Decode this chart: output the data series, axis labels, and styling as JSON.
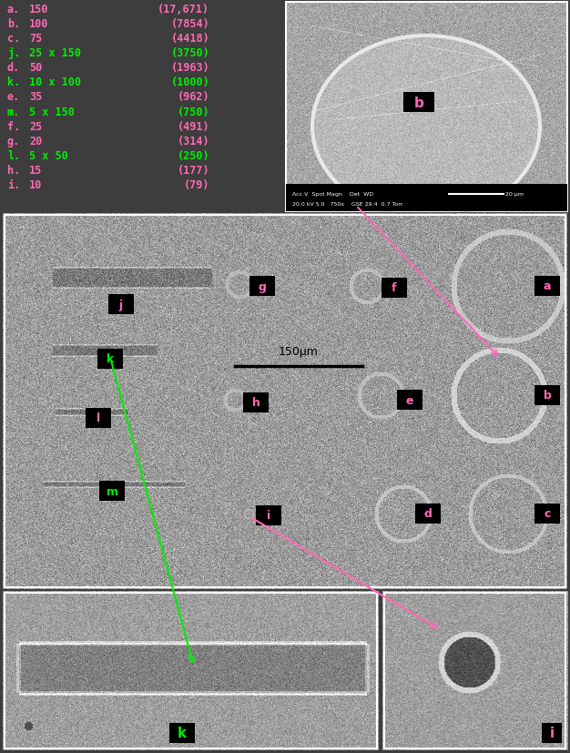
{
  "bg_color": "#3d3d3d",
  "sem_bg_main": "#a0a0a0",
  "sem_bg_inset": "#b8b8b8",
  "text_color_pink": "#ff69b4",
  "text_color_green": "#00ee00",
  "label_bg": "#000000",
  "legend_items": [
    {
      "label": "a.",
      "value": "150",
      "area": "(17,671)",
      "color": "pink"
    },
    {
      "label": "b.",
      "value": "100",
      "area": "(7854)",
      "color": "pink"
    },
    {
      "label": "c.",
      "value": "75",
      "area": "(4418)",
      "color": "pink"
    },
    {
      "label": "j.",
      "value": "25 x 150",
      "area": "(3750)",
      "color": "green"
    },
    {
      "label": "d.",
      "value": "50",
      "area": "(1963)",
      "color": "pink"
    },
    {
      "label": "k.",
      "value": "10 x 100",
      "area": "(1000)",
      "color": "green"
    },
    {
      "label": "e.",
      "value": "35",
      "area": "(962)",
      "color": "pink"
    },
    {
      "label": "m.",
      "value": "5 x 150",
      "area": "(750)",
      "color": "green"
    },
    {
      "label": "f.",
      "value": "25",
      "area": "(491)",
      "color": "pink"
    },
    {
      "label": "g.",
      "value": "20",
      "area": "(314)",
      "color": "pink"
    },
    {
      "label": "l.",
      "value": "5 x 50",
      "area": "(250)",
      "color": "green"
    },
    {
      "label": "h.",
      "value": "15",
      "area": "(177)",
      "color": "pink"
    },
    {
      "label": "i.",
      "value": "10",
      "area": "(79)",
      "color": "pink"
    }
  ],
  "scale_bar_text": "150μm",
  "sem_info_line1": "Acc.V  Spot Magn    Det  WD",
  "sem_info_line2": "20.0 kV 5.0   750x    GSE 29.4  0.7 Torr",
  "scale_bar_sem": "20 μm"
}
